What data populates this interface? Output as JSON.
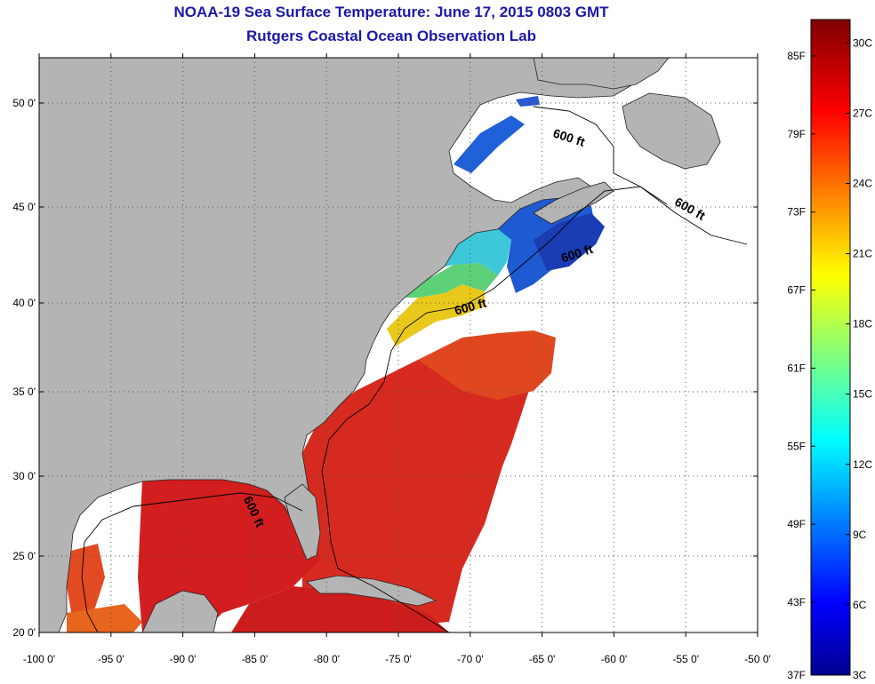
{
  "title": {
    "line1": "NOAA-19 Sea Surface Temperature:  June 17, 2015 0803 GMT",
    "line2": "Rutgers Coastal Ocean Observation Lab"
  },
  "map": {
    "lon_ticks": [
      "-100 0'",
      "-95 0'",
      "-90 0'",
      "-85 0'",
      "-80 0'",
      "-75 0'",
      "-70 0'",
      "-65 0'",
      "-60 0'",
      "-55 0'",
      "-50 0'"
    ],
    "lat_ticks": [
      "50 0'",
      "45 0'",
      "40 0'",
      "35 0'",
      "30 0'",
      "25 0'",
      "20 0'"
    ],
    "contour_label": "600 ft",
    "colors": {
      "land": "#b4b4b4",
      "no_data": "#ffffff",
      "warm": "#d81e1e",
      "grid": "#555555"
    }
  },
  "colorbar": {
    "fahrenheit_labels": [
      "85F",
      "79F",
      "73F",
      "67F",
      "61F",
      "55F",
      "49F",
      "43F",
      "37F"
    ],
    "celsius_labels": [
      "30C",
      "27C",
      "24C",
      "21C",
      "18C",
      "15C",
      "12C",
      "9C",
      "6C",
      "3C"
    ],
    "range_c": [
      3,
      31
    ],
    "colormap": "jet"
  }
}
